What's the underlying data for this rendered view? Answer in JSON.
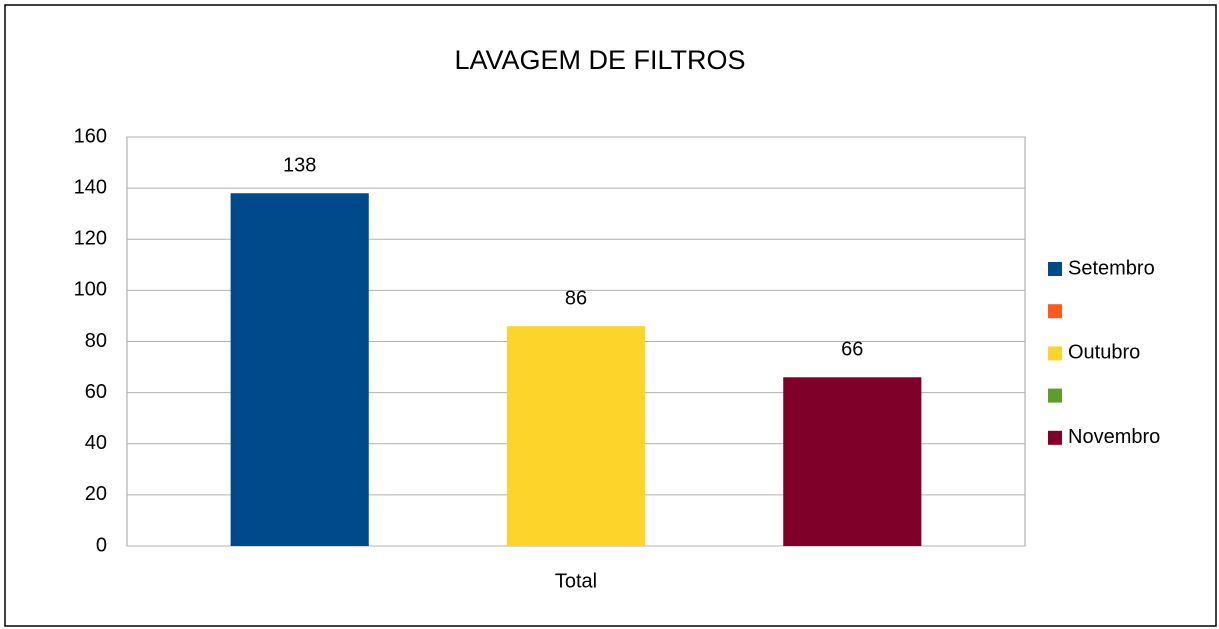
{
  "chart_data": {
    "type": "bar",
    "title": "LAVAGEM DE FILTROS",
    "categories": [
      "Total"
    ],
    "series": [
      {
        "name": "Setembro",
        "color": "#004a8b",
        "values": [
          138
        ]
      },
      {
        "name": null,
        "color": "#ff5a1e",
        "values": [
          null
        ]
      },
      {
        "name": "Outubro",
        "color": "#fdd52a",
        "values": [
          86
        ]
      },
      {
        "name": null,
        "color": "#5e9c2c",
        "values": [
          null
        ]
      },
      {
        "name": "Novembro",
        "color": "#7f0028",
        "values": [
          66
        ]
      }
    ],
    "ylim": [
      0,
      160
    ],
    "yticks": [
      0,
      20,
      40,
      60,
      80,
      100,
      120,
      140,
      160
    ],
    "grid": true,
    "legend": "right"
  }
}
